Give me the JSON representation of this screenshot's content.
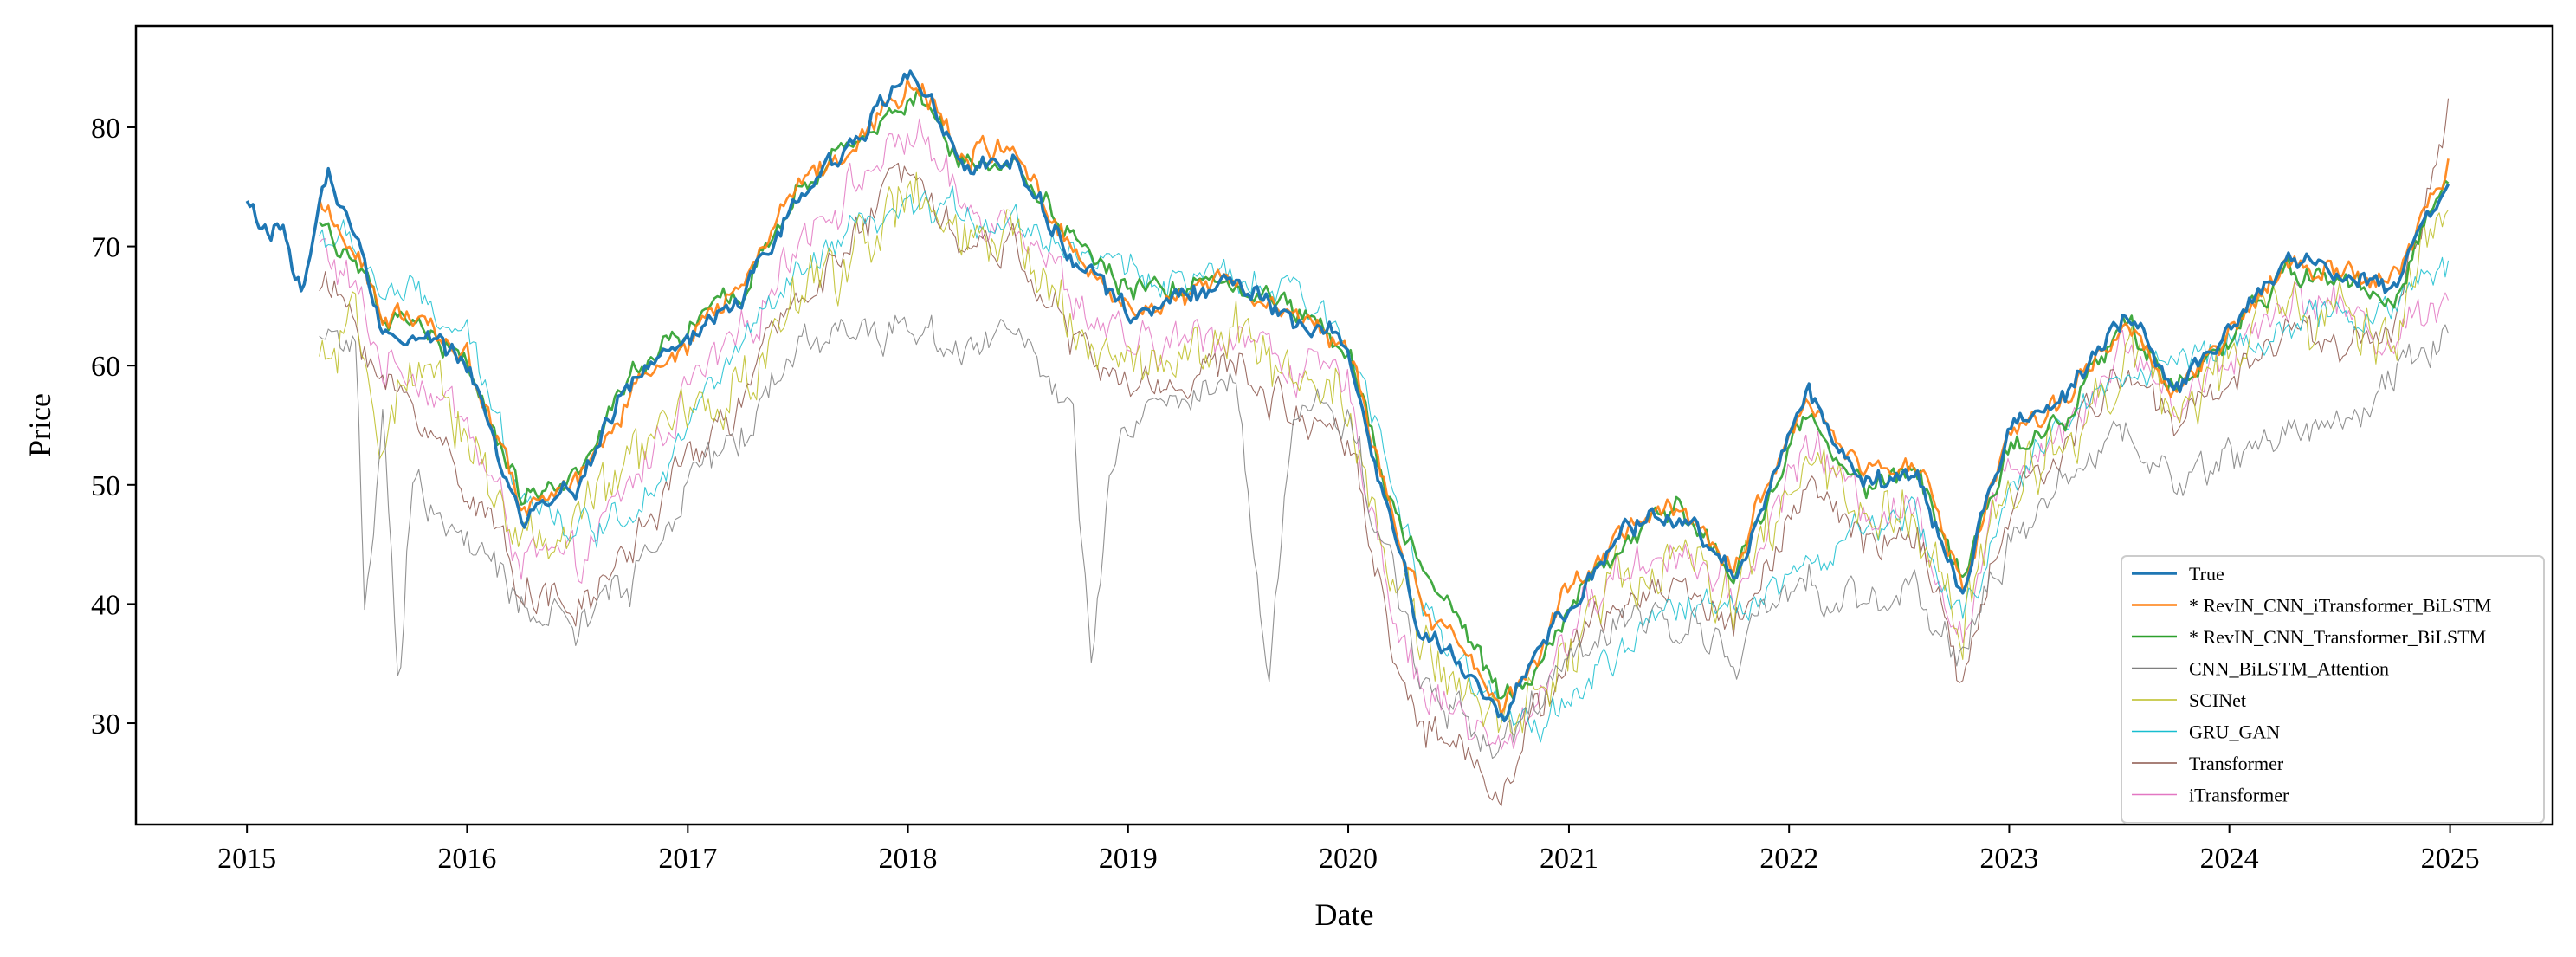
{
  "chart_data": {
    "type": "line",
    "title": "",
    "xlabel": "Date",
    "ylabel": "Price",
    "xlim": [
      "2014-07-01",
      "2025-06-20"
    ],
    "ylim": [
      21.5,
      88.5
    ],
    "xticks": [
      "2015",
      "2016",
      "2017",
      "2018",
      "2019",
      "2020",
      "2021",
      "2022",
      "2023",
      "2024",
      "2025"
    ],
    "yticks": [
      30,
      40,
      50,
      60,
      70,
      80
    ],
    "grid": false,
    "legend_position": "lower-right",
    "series": [
      {
        "name": "True",
        "color": "#1f77b4",
        "start": "2015-01-01",
        "x": [
          "2015-01-01",
          "2015-02-01",
          "2015-03-01",
          "2015-04-01",
          "2015-05-15",
          "2015-07-01",
          "2015-08-15",
          "2015-10-01",
          "2016-01-01",
          "2016-04-01",
          "2016-07-01",
          "2016-10-01",
          "2017-01-01",
          "2017-04-01",
          "2017-07-01",
          "2017-10-01",
          "2018-01-15",
          "2018-04-01",
          "2018-07-01",
          "2018-10-01",
          "2019-01-01",
          "2019-04-01",
          "2019-07-01",
          "2019-10-01",
          "2020-01-01",
          "2020-03-15",
          "2020-05-01",
          "2020-07-01",
          "2020-09-15",
          "2020-11-15",
          "2021-01-01",
          "2021-04-01",
          "2021-07-01",
          "2021-10-01",
          "2022-02-01",
          "2022-05-01",
          "2022-08-01",
          "2022-10-15",
          "2023-01-01",
          "2023-04-01",
          "2023-07-15",
          "2023-10-01",
          "2024-01-01",
          "2024-04-01",
          "2024-07-01",
          "2024-10-01",
          "2025-01-01"
        ],
        "y": [
          74,
          71,
          72,
          66,
          76,
          70,
          63,
          63,
          60,
          47,
          50,
          59,
          62,
          66,
          74,
          79,
          85,
          77,
          77,
          69,
          64,
          66,
          67,
          64,
          62,
          46,
          38,
          35,
          30,
          37,
          40,
          46,
          48,
          42,
          58,
          50,
          51,
          40,
          55,
          57,
          65,
          58,
          63,
          69,
          68,
          66,
          76
        ]
      },
      {
        "name": "* RevIN_CNN_iTransformer_BiLSTM",
        "color": "#ff7f0e",
        "start": "2015-05-01",
        "x": [
          "2015-05-01",
          "2015-07-01",
          "2015-08-15",
          "2015-10-01",
          "2016-01-01",
          "2016-04-01",
          "2016-07-01",
          "2016-10-01",
          "2017-01-01",
          "2017-04-01",
          "2017-07-01",
          "2017-10-01",
          "2018-01-15",
          "2018-04-01",
          "2018-07-01",
          "2018-10-01",
          "2019-01-01",
          "2019-04-01",
          "2019-07-01",
          "2019-10-01",
          "2020-01-01",
          "2020-03-15",
          "2020-05-01",
          "2020-07-01",
          "2020-09-15",
          "2020-11-15",
          "2021-01-01",
          "2021-04-01",
          "2021-07-01",
          "2021-10-01",
          "2022-02-01",
          "2022-05-01",
          "2022-08-01",
          "2022-10-15",
          "2023-01-01",
          "2023-04-01",
          "2023-07-15",
          "2023-10-01",
          "2024-01-01",
          "2024-04-01",
          "2024-07-01",
          "2024-10-01",
          "2025-01-01"
        ],
        "y": [
          73,
          70,
          64,
          64,
          61,
          48,
          50,
          58,
          62,
          67,
          75,
          79,
          84,
          78,
          78,
          70,
          65,
          66,
          67,
          64,
          62,
          47,
          40,
          36,
          31,
          36,
          41,
          46,
          48,
          43,
          57,
          51,
          52,
          41,
          54,
          57,
          64,
          58,
          63,
          69,
          68,
          67,
          77
        ]
      },
      {
        "name": "* RevIN_CNN_Transformer_BiLSTM",
        "color": "#2ca02c",
        "start": "2015-05-01",
        "x": [
          "2015-05-01",
          "2015-07-01",
          "2015-08-15",
          "2015-10-01",
          "2016-01-01",
          "2016-04-01",
          "2016-07-01",
          "2016-10-01",
          "2017-01-01",
          "2017-04-01",
          "2017-07-01",
          "2017-10-01",
          "2018-01-15",
          "2018-04-01",
          "2018-07-01",
          "2018-10-01",
          "2019-01-01",
          "2019-04-01",
          "2019-07-01",
          "2019-10-01",
          "2020-01-01",
          "2020-03-15",
          "2020-05-01",
          "2020-07-01",
          "2020-09-15",
          "2020-11-15",
          "2021-01-01",
          "2021-04-01",
          "2021-07-01",
          "2021-10-01",
          "2022-02-01",
          "2022-05-01",
          "2022-08-01",
          "2022-10-15",
          "2023-01-01",
          "2023-04-01",
          "2023-07-15",
          "2023-10-01",
          "2024-01-01",
          "2024-04-01",
          "2024-07-01",
          "2024-10-01",
          "2025-01-01"
        ],
        "y": [
          72,
          69,
          63,
          64,
          60,
          49,
          51,
          59,
          63,
          66,
          75,
          78,
          83,
          77,
          77,
          71,
          66,
          67,
          67,
          65,
          62,
          48,
          43,
          38,
          32,
          35,
          40,
          45,
          48,
          43,
          56,
          50,
          51,
          42,
          53,
          56,
          64,
          58,
          62,
          68,
          67,
          66,
          77
        ]
      },
      {
        "name": "CNN_BiLSTM_Attention",
        "color": "#7f7f7f",
        "start": "2015-05-01",
        "x": [
          "2015-05-01",
          "2015-07-01",
          "2015-07-15",
          "2015-08-15",
          "2015-09-10",
          "2015-10-01",
          "2016-01-01",
          "2016-04-01",
          "2016-07-01",
          "2016-10-01",
          "2017-01-01",
          "2017-04-01",
          "2017-07-01",
          "2017-10-01",
          "2018-01-15",
          "2018-04-01",
          "2018-07-01",
          "2018-10-01",
          "2018-11-01",
          "2018-12-01",
          "2019-01-01",
          "2019-04-01",
          "2019-07-01",
          "2019-08-20",
          "2019-10-01",
          "2020-01-01",
          "2020-03-15",
          "2020-05-01",
          "2020-07-01",
          "2020-09-15",
          "2020-11-15",
          "2021-01-01",
          "2021-04-01",
          "2021-07-01",
          "2021-10-01",
          "2022-02-01",
          "2022-05-01",
          "2022-08-01",
          "2022-10-15",
          "2023-01-01",
          "2023-04-01",
          "2023-07-15",
          "2023-10-01",
          "2024-01-01",
          "2024-04-01",
          "2024-07-01",
          "2024-10-01",
          "2025-01-01"
        ],
        "y": [
          63,
          62,
          38,
          55,
          33,
          50,
          45,
          40,
          38,
          42,
          50,
          54,
          62,
          63,
          63,
          62,
          63,
          55,
          35,
          50,
          55,
          57,
          58,
          33,
          56,
          56,
          42,
          34,
          31,
          28,
          32,
          35,
          38,
          39,
          36,
          42,
          40,
          41,
          36,
          45,
          50,
          55,
          50,
          52,
          55,
          55,
          59,
          63
        ]
      },
      {
        "name": "SCINet",
        "color": "#bcbd22",
        "start": "2015-05-01",
        "x": [
          "2015-05-01",
          "2015-07-01",
          "2015-08-15",
          "2015-10-01",
          "2016-01-01",
          "2016-04-01",
          "2016-07-01",
          "2016-10-01",
          "2017-01-01",
          "2017-04-01",
          "2017-07-01",
          "2017-10-01",
          "2018-01-15",
          "2018-04-01",
          "2018-07-01",
          "2018-10-01",
          "2019-01-01",
          "2019-04-01",
          "2019-07-01",
          "2019-10-01",
          "2020-01-01",
          "2020-03-15",
          "2020-05-01",
          "2020-07-01",
          "2020-09-15",
          "2020-11-15",
          "2021-01-01",
          "2021-04-01",
          "2021-07-01",
          "2021-10-01",
          "2022-02-01",
          "2022-05-01",
          "2022-08-01",
          "2022-10-15",
          "2023-01-01",
          "2023-04-01",
          "2023-07-15",
          "2023-10-01",
          "2024-01-01",
          "2024-04-01",
          "2024-07-01",
          "2024-10-01",
          "2025-01-01"
        ],
        "y": [
          60,
          62,
          55,
          58,
          55,
          45,
          46,
          52,
          56,
          58,
          65,
          70,
          74,
          70,
          70,
          64,
          60,
          61,
          62,
          60,
          58,
          42,
          36,
          34,
          29,
          33,
          37,
          42,
          44,
          40,
          52,
          47,
          47,
          38,
          50,
          54,
          61,
          56,
          60,
          65,
          64,
          62,
          74
        ]
      },
      {
        "name": "GRU_GAN",
        "color": "#17becf",
        "start": "2015-05-01",
        "x": [
          "2015-05-01",
          "2015-07-01",
          "2015-08-15",
          "2015-10-01",
          "2016-01-01",
          "2016-04-01",
          "2016-07-01",
          "2016-10-01",
          "2017-01-01",
          "2017-04-01",
          "2017-07-01",
          "2017-10-01",
          "2018-01-15",
          "2018-04-01",
          "2018-07-01",
          "2018-10-01",
          "2019-01-01",
          "2019-04-01",
          "2019-07-01",
          "2019-10-01",
          "2020-01-01",
          "2020-03-15",
          "2020-05-01",
          "2020-07-01",
          "2020-09-15",
          "2020-11-15",
          "2021-01-01",
          "2021-04-01",
          "2021-07-01",
          "2021-10-01",
          "2022-02-01",
          "2022-05-01",
          "2022-08-01",
          "2022-10-15",
          "2023-01-01",
          "2023-04-01",
          "2023-07-15",
          "2023-10-01",
          "2024-01-01",
          "2024-04-01",
          "2024-07-01",
          "2024-10-01",
          "2025-01-01"
        ],
        "y": [
          71,
          70,
          66,
          66,
          62,
          50,
          46,
          48,
          55,
          62,
          67,
          71,
          73,
          73,
          72,
          70,
          68,
          67,
          67,
          66,
          62,
          52,
          40,
          35,
          30,
          30,
          32,
          36,
          40,
          40,
          43,
          46,
          47,
          38,
          50,
          55,
          60,
          60,
          62,
          63,
          64,
          65,
          69
        ]
      },
      {
        "name": "Transformer",
        "color": "#8c564b",
        "start": "2015-05-01",
        "x": [
          "2015-05-01",
          "2015-07-01",
          "2015-08-15",
          "2015-10-01",
          "2016-01-01",
          "2016-04-01",
          "2016-07-01",
          "2016-10-01",
          "2017-01-01",
          "2017-04-01",
          "2017-07-01",
          "2017-10-01",
          "2018-01-15",
          "2018-04-01",
          "2018-07-01",
          "2018-10-01",
          "2019-01-01",
          "2019-04-01",
          "2019-07-01",
          "2019-10-01",
          "2020-01-01",
          "2020-03-15",
          "2020-05-01",
          "2020-07-01",
          "2020-09-15",
          "2020-11-15",
          "2021-01-01",
          "2021-04-01",
          "2021-07-01",
          "2021-10-01",
          "2022-02-01",
          "2022-05-01",
          "2022-08-01",
          "2022-10-15",
          "2023-01-01",
          "2023-04-01",
          "2023-07-15",
          "2023-10-01",
          "2024-01-01",
          "2024-04-01",
          "2024-07-01",
          "2024-10-01",
          "2025-01-01"
        ],
        "y": [
          67,
          64,
          58,
          57,
          50,
          42,
          39,
          45,
          52,
          57,
          66,
          70,
          78,
          70,
          70,
          62,
          58,
          59,
          60,
          56,
          55,
          36,
          30,
          28,
          25,
          31,
          36,
          40,
          42,
          38,
          50,
          45,
          46,
          33,
          48,
          53,
          60,
          55,
          59,
          63,
          62,
          63,
          82
        ]
      },
      {
        "name": "iTransformer",
        "color": "#e377c2",
        "start": "2015-05-01",
        "x": [
          "2015-05-01",
          "2015-07-01",
          "2015-08-15",
          "2015-10-01",
          "2016-01-01",
          "2016-04-01",
          "2016-07-01",
          "2016-10-01",
          "2017-01-01",
          "2017-04-01",
          "2017-07-01",
          "2017-10-01",
          "2018-01-15",
          "2018-04-01",
          "2018-07-01",
          "2018-10-01",
          "2019-01-01",
          "2019-04-01",
          "2019-07-01",
          "2019-10-01",
          "2020-01-01",
          "2020-03-15",
          "2020-05-01",
          "2020-07-01",
          "2020-09-15",
          "2020-11-15",
          "2021-01-01",
          "2021-04-01",
          "2021-07-01",
          "2021-10-01",
          "2022-02-01",
          "2022-05-01",
          "2022-08-01",
          "2022-10-15",
          "2023-01-01",
          "2023-04-01",
          "2023-07-15",
          "2023-10-01",
          "2024-01-01",
          "2024-04-01",
          "2024-07-01",
          "2024-10-01",
          "2025-01-01"
        ],
        "y": [
          70,
          66,
          60,
          60,
          55,
          44,
          43,
          50,
          58,
          62,
          71,
          75,
          80,
          73,
          73,
          66,
          61,
          62,
          63,
          60,
          58,
          40,
          33,
          31,
          27,
          33,
          38,
          43,
          45,
          40,
          54,
          48,
          48,
          37,
          52,
          55,
          62,
          57,
          61,
          66,
          65,
          62,
          67
        ]
      }
    ]
  }
}
